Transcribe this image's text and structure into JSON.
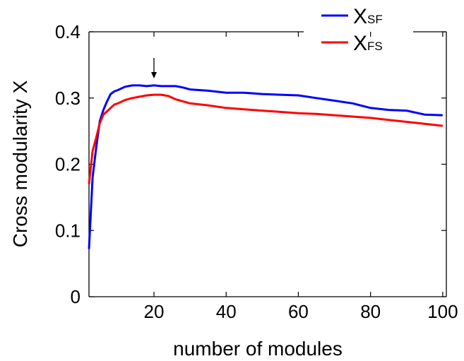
{
  "chart_data": {
    "type": "line",
    "xlabel": "number of modules",
    "ylabel": "Cross modularity X",
    "xlim": [
      2,
      101
    ],
    "ylim": [
      0,
      0.4
    ],
    "xticks": [
      20,
      40,
      60,
      80,
      100
    ],
    "yticks": [
      0,
      0.1,
      0.2,
      0.3,
      0.4
    ],
    "ytick_labels": [
      "0",
      "0.1",
      "0.2",
      "0.3",
      "0.4"
    ],
    "grid": false,
    "legend_position": "top-right",
    "annotation": {
      "type": "arrow",
      "x": 20,
      "label": ""
    },
    "series": [
      {
        "name": "X",
        "subscript": "SF",
        "color": "#0000ff",
        "x": [
          2,
          3,
          4,
          5,
          6,
          7,
          8,
          9,
          10,
          12,
          14,
          16,
          18,
          20,
          22,
          24,
          26,
          28,
          30,
          35,
          40,
          45,
          50,
          55,
          60,
          65,
          70,
          75,
          80,
          85,
          90,
          95,
          100
        ],
        "values": [
          0.072,
          0.18,
          0.225,
          0.265,
          0.282,
          0.295,
          0.306,
          0.31,
          0.312,
          0.317,
          0.319,
          0.319,
          0.318,
          0.319,
          0.318,
          0.318,
          0.318,
          0.316,
          0.313,
          0.311,
          0.308,
          0.308,
          0.306,
          0.305,
          0.304,
          0.3,
          0.296,
          0.292,
          0.285,
          0.282,
          0.281,
          0.275,
          0.274
        ]
      },
      {
        "name": "X",
        "subscript": "FS",
        "color": "#ff0000",
        "x": [
          2,
          3,
          4,
          5,
          6,
          7,
          8,
          9,
          10,
          12,
          14,
          16,
          18,
          20,
          22,
          24,
          26,
          28,
          30,
          35,
          40,
          45,
          50,
          55,
          60,
          65,
          70,
          75,
          80,
          85,
          90,
          95,
          100
        ],
        "values": [
          0.17,
          0.22,
          0.24,
          0.262,
          0.275,
          0.28,
          0.285,
          0.29,
          0.292,
          0.297,
          0.3,
          0.302,
          0.304,
          0.305,
          0.305,
          0.303,
          0.298,
          0.295,
          0.292,
          0.289,
          0.285,
          0.283,
          0.281,
          0.279,
          0.277,
          0.276,
          0.274,
          0.272,
          0.27,
          0.267,
          0.264,
          0.261,
          0.258
        ]
      }
    ]
  }
}
